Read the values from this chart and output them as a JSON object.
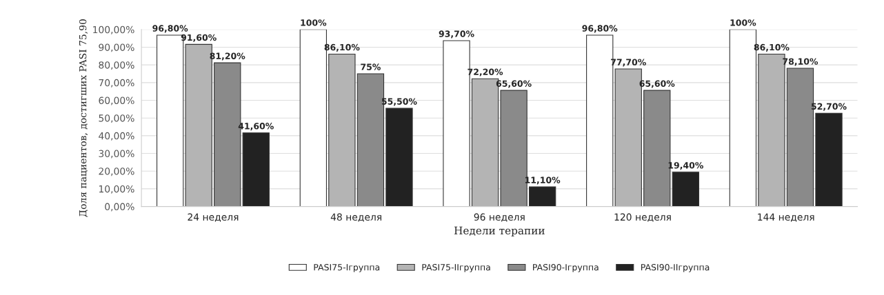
{
  "chart_data": {
    "type": "bar",
    "xlabel": "Недели терапии",
    "ylabel": "Доля пациентов, достигших PASI 75,90",
    "categories": [
      "24 неделя",
      "48 неделя",
      "96 неделя",
      "120 неделя",
      "144 неделя"
    ],
    "series": [
      {
        "name": "PASI75-Iгруппа",
        "color": "#ffffff",
        "values": [
          96.8,
          100,
          93.7,
          96.8,
          100
        ],
        "value_labels": [
          "96,80%",
          "100%",
          "93,70%",
          "96,80%",
          "100%"
        ]
      },
      {
        "name": "PASI75-IIгруппа",
        "color": "#b4b4b4",
        "values": [
          91.6,
          86.1,
          72.2,
          77.7,
          86.1
        ],
        "value_labels": [
          "91,60%",
          "86,10%",
          "72,20%",
          "77,70%",
          "86,10%"
        ]
      },
      {
        "name": "PASI90-Iгруппа",
        "color": "#8a8a8a",
        "values": [
          81.2,
          75,
          65.6,
          65.6,
          78.1
        ],
        "value_labels": [
          "81,20%",
          "75%",
          "65,60%",
          "65,60%",
          "78,10%"
        ]
      },
      {
        "name": "PASI90-IIгруппа",
        "color": "#222222",
        "values": [
          41.6,
          55.5,
          11.1,
          19.4,
          52.7
        ],
        "value_labels": [
          "41,60%",
          "55,50%",
          "11,10%",
          "19,40%",
          "52,70%"
        ]
      }
    ],
    "ylim": [
      0,
      100
    ],
    "yticks": [
      {
        "value": 0,
        "label": "0,00%"
      },
      {
        "value": 10,
        "label": "10,00%"
      },
      {
        "value": 20,
        "label": "20,00%"
      },
      {
        "value": 30,
        "label": "30,00%"
      },
      {
        "value": 40,
        "label": "40,00%"
      },
      {
        "value": 50,
        "label": "50,00%"
      },
      {
        "value": 60,
        "label": "60,00%"
      },
      {
        "value": 70,
        "label": "70,00%"
      },
      {
        "value": 80,
        "label": "80,00%"
      },
      {
        "value": 90,
        "label": "90,00%"
      },
      {
        "value": 100,
        "label": "100,00%"
      }
    ],
    "grid": "y",
    "legend": "bottom"
  }
}
